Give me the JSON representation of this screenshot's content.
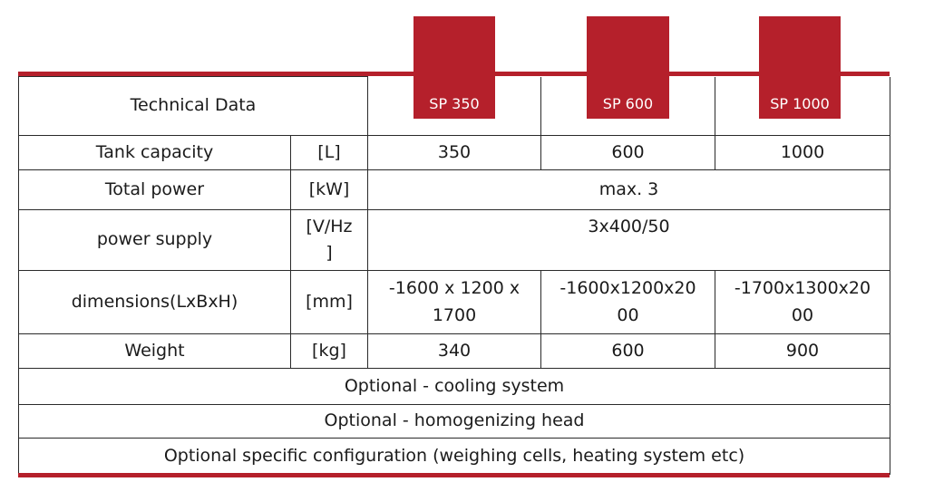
{
  "colors": {
    "accent": "#b5202b",
    "grid": "#2a2a2a",
    "text": "#1b1b1b"
  },
  "header": {
    "title": "Technical Data",
    "models": [
      "SP 350",
      "SP 600",
      "SP 1000"
    ]
  },
  "rows": {
    "tank_capacity": {
      "label": "Tank capacity",
      "unit": "[L]",
      "values": [
        "350",
        "600",
        "1000"
      ]
    },
    "total_power": {
      "label": "Total power",
      "unit": "[kW]",
      "value": "max. 3"
    },
    "power_supply": {
      "label": "power supply",
      "unit_line1": "[V/Hz",
      "unit_line2": "]",
      "value": "3x400/50"
    },
    "dimensions": {
      "label": "dimensions(LxBxH)",
      "unit": "[mm]",
      "values": [
        {
          "line1": "-1600 x 1200 x",
          "line2": "1700"
        },
        {
          "line1": "-1600x1200x20",
          "line2": "00"
        },
        {
          "line1": "-1700x1300x20",
          "line2": "00"
        }
      ]
    },
    "weight": {
      "label": "Weight",
      "unit": "[kg]",
      "values": [
        "340",
        "600",
        "900"
      ]
    }
  },
  "optionals": [
    "Optional - cooling system",
    "Optional - homogenizing head",
    "Optional specific configuration (weighing cells, heating system etc)"
  ]
}
